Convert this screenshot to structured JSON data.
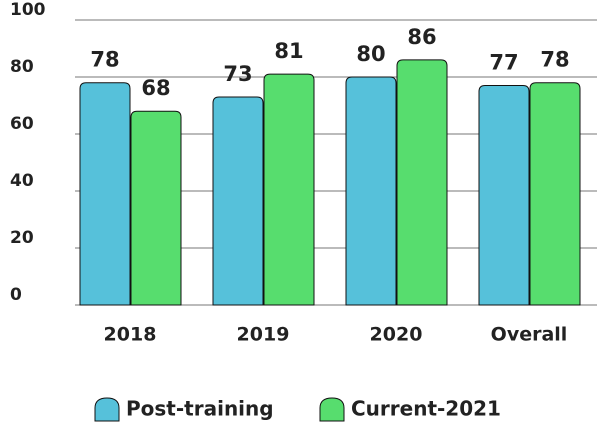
{
  "chart_data": {
    "type": "bar",
    "categories": [
      "2018",
      "2019",
      "2020",
      "Overall"
    ],
    "series": [
      {
        "name": "Post-training",
        "color": "#56c1da",
        "values": [
          78,
          73,
          80,
          77
        ]
      },
      {
        "name": "Current-2021",
        "color": "#57dd6e",
        "values": [
          68,
          81,
          86,
          78
        ]
      }
    ],
    "ylim": [
      0,
      100
    ],
    "yticks": [
      0,
      20,
      40,
      60,
      80,
      100
    ],
    "grid": true
  }
}
